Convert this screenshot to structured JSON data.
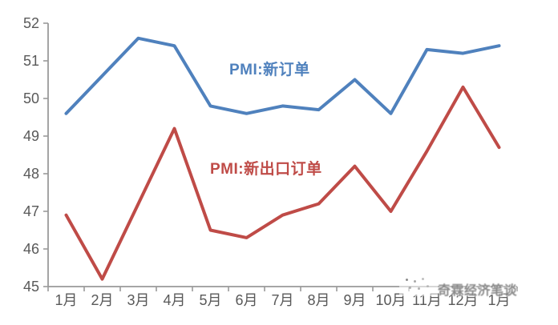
{
  "chart_data": {
    "type": "line",
    "title": "",
    "xlabel": "",
    "ylabel": "",
    "categories": [
      "1月",
      "2月",
      "3月",
      "4月",
      "5月",
      "6月",
      "7月",
      "8月",
      "9月",
      "10月",
      "11月",
      "12月",
      "1月"
    ],
    "series": [
      {
        "name": "PMI:新订单",
        "color": "#4f81bd",
        "values": [
          49.6,
          50.6,
          51.6,
          51.4,
          49.8,
          49.6,
          49.8,
          49.7,
          50.5,
          49.6,
          51.3,
          51.2,
          51.4
        ]
      },
      {
        "name": "PMI:新出口订单",
        "color": "#bf4b47",
        "values": [
          46.9,
          45.2,
          47.2,
          49.2,
          46.5,
          46.3,
          46.9,
          47.2,
          48.2,
          47.0,
          48.6,
          50.3,
          48.7
        ]
      }
    ],
    "ylim": [
      45,
      52
    ],
    "yticks": [
      45,
      46,
      47,
      48,
      49,
      50,
      51,
      52
    ],
    "grid": false,
    "legend_position": "inline-annotations-on-plot"
  },
  "watermark": {
    "text": "奇霖经济笔谈"
  },
  "colors": {
    "series1": "#4f81bd",
    "series2": "#bf4b47",
    "axis_line": "#9a9a9a",
    "axis_text": "#595959",
    "watermark_text": "#696969",
    "background": "#ffffff"
  }
}
